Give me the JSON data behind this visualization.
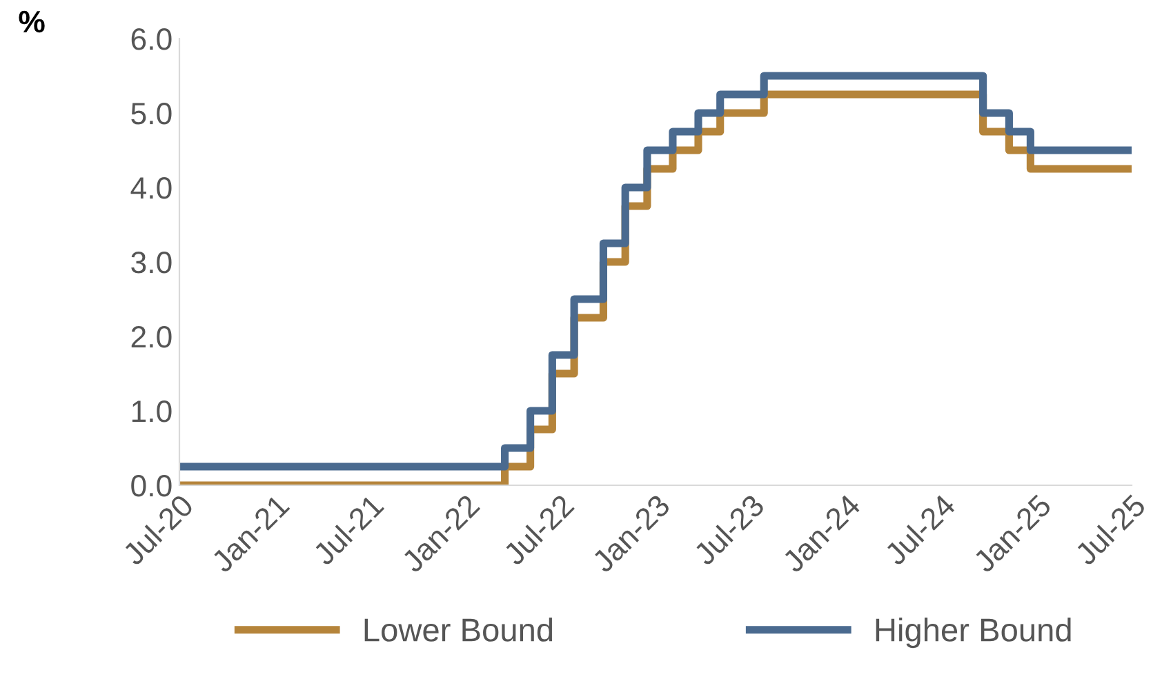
{
  "chart_data": {
    "type": "step",
    "ylabel": "%",
    "x": [
      "2020-07-01",
      "2022-03-17",
      "2022-05-05",
      "2022-06-16",
      "2022-07-28",
      "2022-09-22",
      "2022-11-03",
      "2022-12-15",
      "2023-02-02",
      "2023-03-23",
      "2023-05-04",
      "2023-07-27",
      "2024-09-19",
      "2024-11-08",
      "2024-12-19",
      "2025-07-01"
    ],
    "series": [
      {
        "name": "Lower Bound",
        "color": "#b5843a",
        "values": [
          0,
          0.25,
          0.75,
          1.5,
          2.25,
          3.0,
          3.75,
          4.25,
          4.5,
          4.75,
          5.0,
          5.25,
          4.75,
          4.5,
          4.25,
          4.25
        ]
      },
      {
        "name": "Higher Bound",
        "color": "#4a6a8f",
        "values": [
          0.25,
          0.5,
          1.0,
          1.75,
          2.5,
          3.25,
          4.0,
          4.5,
          4.75,
          5.0,
          5.25,
          5.5,
          5.0,
          4.75,
          4.5,
          4.5
        ]
      }
    ],
    "xlim": [
      "2020-07-01",
      "2025-07-01"
    ],
    "xticks": [
      {
        "value": "2020-07-01",
        "label": "Jul-20"
      },
      {
        "value": "2021-01-01",
        "label": "Jan-21"
      },
      {
        "value": "2021-07-01",
        "label": "Jul-21"
      },
      {
        "value": "2022-01-01",
        "label": "Jan-22"
      },
      {
        "value": "2022-07-01",
        "label": "Jul-22"
      },
      {
        "value": "2023-01-01",
        "label": "Jan-23"
      },
      {
        "value": "2023-07-01",
        "label": "Jul-23"
      },
      {
        "value": "2024-01-01",
        "label": "Jan-24"
      },
      {
        "value": "2024-07-01",
        "label": "Jul-24"
      },
      {
        "value": "2025-01-01",
        "label": "Jan-25"
      },
      {
        "value": "2025-07-01",
        "label": "Jul-25"
      }
    ],
    "ylim": [
      0,
      6
    ],
    "yticks": [
      {
        "value": 0,
        "label": "0.0"
      },
      {
        "value": 1,
        "label": "1.0"
      },
      {
        "value": 2,
        "label": "2.0"
      },
      {
        "value": 3,
        "label": "3.0"
      },
      {
        "value": 4,
        "label": "4.0"
      },
      {
        "value": 5,
        "label": "5.0"
      },
      {
        "value": 6,
        "label": "6.0"
      }
    ],
    "legend": "bottom",
    "line_style": "solid",
    "marker": "none"
  }
}
